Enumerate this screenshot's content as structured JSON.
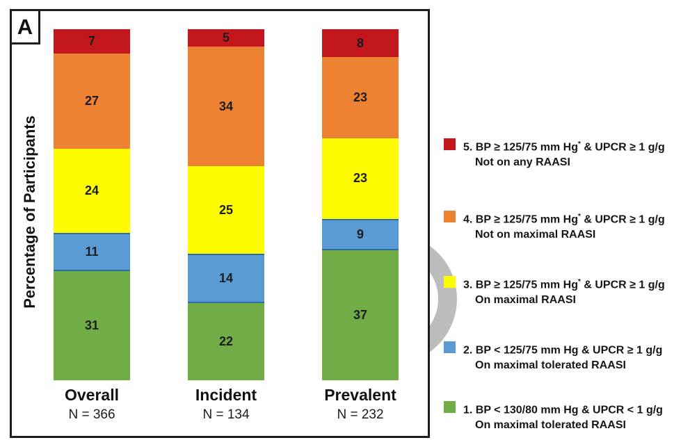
{
  "panel_label": "A",
  "ylabel": "Percentage of Participants",
  "colors": {
    "red": "#C4161D",
    "orange": "#EE8233",
    "yellow": "#FDFD00",
    "blue": "#5B9BD5",
    "blue_border": "#2E6DA4",
    "green": "#70AD47",
    "watermark_gray": "#BCBCBC"
  },
  "chart_data": {
    "type": "bar",
    "subtype": "stacked-percentage",
    "categories": [
      "Overall",
      "Incident",
      "Prevalent"
    ],
    "category_ns": [
      "N = 366",
      "N = 134",
      "N = 232"
    ],
    "ylabel": "Percentage of Participants",
    "ylim": [
      0,
      100
    ],
    "grid": false,
    "legend_position": "right",
    "series": [
      {
        "name": "1. BP < 130/80 mm Hg & UPCR < 1 g/g  On maximal tolerated RAASI",
        "color": "#70AD47",
        "values": [
          31,
          22,
          37
        ]
      },
      {
        "name": "2. BP < 125/75 mm Hg & UPCR ≥ 1 g/g  On maximal tolerated RAASI",
        "color": "#5B9BD5",
        "border": "#2E6DA4",
        "values": [
          11,
          14,
          9
        ]
      },
      {
        "name": "3. BP ≥ 125/75 mm Hg* & UPCR ≥ 1 g/g  On maximal RAASI",
        "color": "#FDFD00",
        "values": [
          24,
          25,
          23
        ]
      },
      {
        "name": "4. BP ≥ 125/75 mm Hg* & UPCR ≥ 1 g/g  Not on maximal RAASI",
        "color": "#EE8233",
        "values": [
          27,
          34,
          23
        ]
      },
      {
        "name": "5. BP ≥ 125/75 mm Hg* & UPCR ≥ 1 g/g  Not on any RAASI",
        "color": "#C4161D",
        "values": [
          7,
          5,
          8
        ]
      }
    ]
  },
  "legend": {
    "items": [
      {
        "line1_a": "5. BP ≥ 125/75 mm Hg",
        "sup": "*",
        "line1_b": " & UPCR ≥ 1 g/g",
        "line2": "Not on any RAASI",
        "color": "#C4161D"
      },
      {
        "line1_a": "4. BP ≥ 125/75 mm Hg",
        "sup": "*",
        "line1_b": " & UPCR ≥ 1 g/g",
        "line2": "Not on maximal RAASI",
        "color": "#EE8233"
      },
      {
        "line1_a": "3. BP ≥ 125/75 mm Hg",
        "sup": "*",
        "line1_b": " & UPCR ≥ 1 g/g",
        "line2": "On maximal RAASI",
        "color": "#FDFD00"
      },
      {
        "line1_a": "2. BP < 125/75 mm Hg",
        "sup": "",
        "line1_b": " & UPCR ≥ 1 g/g",
        "line2": "On maximal tolerated RAASI",
        "color": "#5B9BD5"
      },
      {
        "line1_a": "1. BP < 130/80 mm Hg",
        "sup": "",
        "line1_b": " & UPCR < 1 g/g",
        "line2": "On maximal tolerated RAASI",
        "color": "#70AD47"
      }
    ]
  }
}
